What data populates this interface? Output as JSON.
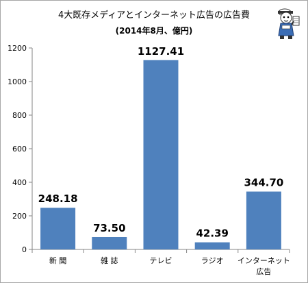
{
  "chart_data": {
    "type": "bar",
    "title": "4大既存メディアとインターネット広告の広告費",
    "subtitle": "(2014年8月、億円)",
    "categories": [
      "新 聞",
      "雑 誌",
      "テレビ",
      "ラジオ",
      "インターネット広告"
    ],
    "category_lines": [
      [
        "新 聞"
      ],
      [
        "雑 誌"
      ],
      [
        "テレビ"
      ],
      [
        "ラジオ"
      ],
      [
        "インターネット",
        "広告"
      ]
    ],
    "values": [
      248.18,
      73.5,
      1127.41,
      42.39,
      344.7
    ],
    "value_labels": [
      "248.18",
      "73.50",
      "1127.41",
      "42.39",
      "344.70"
    ],
    "ylim": [
      0,
      1200
    ],
    "yticks": [
      0,
      200,
      400,
      600,
      800,
      1000,
      1200
    ],
    "xlabel": "",
    "ylabel": "",
    "grid": false,
    "legend": "none",
    "bar_color": "#4f81bd"
  }
}
